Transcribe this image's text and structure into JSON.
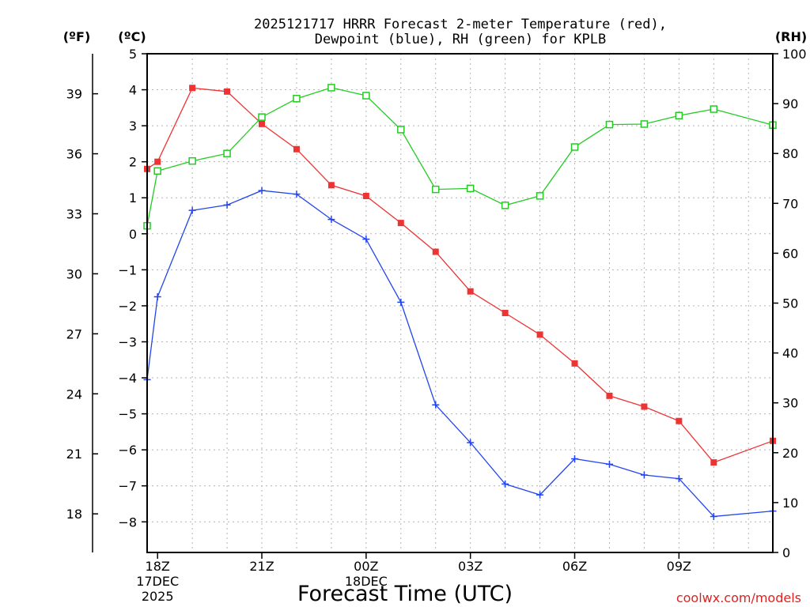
{
  "chart_data": {
    "type": "line",
    "title": [
      "2025121717 HRRR Forecast 2-meter Temperature (red),",
      "Dewpoint (blue), RH (green) for KPLB"
    ],
    "xlabel": "Forecast Time (UTC)",
    "unit_labels": {
      "fahrenheit": "(ºF)",
      "celsius": "(ºC)",
      "rh": "(RH)"
    },
    "watermark": "coolwx.com/models",
    "x_range_hours": [
      -0.3,
      17.7
    ],
    "x_ticks": [
      {
        "hour": 0,
        "label": "18Z",
        "sub": [
          "17DEC",
          "2025"
        ]
      },
      {
        "hour": 3,
        "label": "21Z",
        "sub": []
      },
      {
        "hour": 6,
        "label": "00Z",
        "sub": [
          "18DEC"
        ]
      },
      {
        "hour": 9,
        "label": "03Z",
        "sub": []
      },
      {
        "hour": 12,
        "label": "06Z",
        "sub": []
      },
      {
        "hour": 15,
        "label": "09Z",
        "sub": []
      }
    ],
    "y_celsius": {
      "range": [
        -8.85,
        5
      ],
      "ticks": [
        "5",
        "4",
        "3",
        "2",
        "1",
        "0",
        "−1",
        "−2",
        "−3",
        "−4",
        "−5",
        "−6",
        "−7",
        "−8"
      ]
    },
    "y_fahrenheit": {
      "ticks": [
        "39",
        "36",
        "33",
        "30",
        "27",
        "24",
        "21",
        "18"
      ]
    },
    "y_rh": {
      "range": [
        0,
        100
      ],
      "ticks": [
        "100",
        "90",
        "80",
        "70",
        "60",
        "50",
        "40",
        "30",
        "20",
        "10",
        "0"
      ]
    },
    "hours": [
      -0.3,
      0,
      1,
      2,
      3,
      4,
      5,
      6,
      7,
      8,
      9,
      10,
      11,
      12,
      13,
      14,
      15,
      16,
      17.7
    ],
    "series": [
      {
        "name": "Temperature",
        "axis": "celsius",
        "color": "#ee3333",
        "marker": "filled-square",
        "values": [
          1.8,
          2.0,
          4.05,
          3.95,
          3.05,
          2.35,
          1.35,
          1.05,
          0.3,
          -0.5,
          -1.6,
          -2.2,
          -2.8,
          -3.6,
          -4.5,
          -4.8,
          -5.2,
          -6.35,
          -5.75
        ]
      },
      {
        "name": "Dewpoint",
        "axis": "celsius",
        "color": "#2244ee",
        "marker": "plus",
        "values": [
          -4.05,
          -1.75,
          0.65,
          0.8,
          1.2,
          1.1,
          0.4,
          -0.15,
          -1.9,
          -4.75,
          -5.8,
          -6.95,
          -7.25,
          -6.25,
          -6.4,
          -6.7,
          -6.8,
          -7.85,
          -7.7
        ]
      },
      {
        "name": "RH",
        "axis": "rh",
        "color": "#22cc22",
        "marker": "open-square",
        "values": [
          65.5,
          76.5,
          78.5,
          80,
          87.3,
          91,
          93.2,
          91.6,
          84.8,
          72.8,
          73,
          69.6,
          71.5,
          81.3,
          85.8,
          85.9,
          87.6,
          88.9,
          85.7
        ]
      }
    ]
  }
}
